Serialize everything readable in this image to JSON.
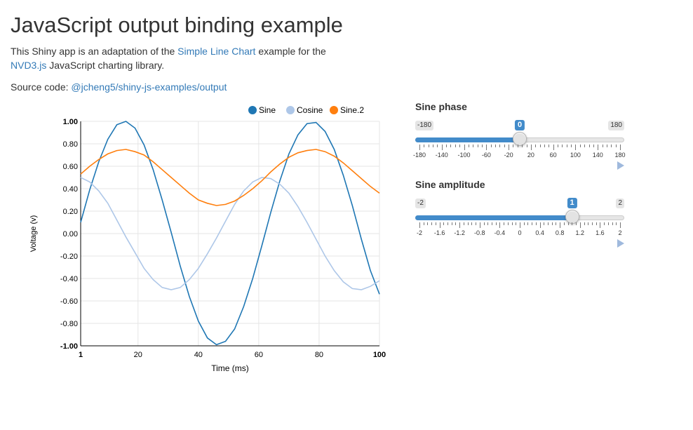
{
  "page": {
    "title": "JavaScript output binding example",
    "desc_prefix": "This Shiny app is an adaptation of the ",
    "desc_link1": "Simple Line Chart",
    "desc_middle": " example for the ",
    "desc_link2": "NVD3.js",
    "desc_suffix": " JavaScript charting library.",
    "source_prefix": "Source code: ",
    "source_link": "@jcheng5/shiny-js-examples/output"
  },
  "controls": {
    "phase": {
      "label": "Sine phase",
      "min": -180,
      "max": 180,
      "value": 0,
      "min_label": "-180",
      "max_label": "180",
      "value_label": "0",
      "tick_labels": [
        "-180",
        "-140",
        "-100",
        "-60",
        "-20",
        "20",
        "60",
        "100",
        "140",
        "180"
      ],
      "play_icon": "play-icon"
    },
    "amplitude": {
      "label": "Sine amplitude",
      "min": -2,
      "max": 2,
      "value": 1,
      "min_label": "-2",
      "max_label": "2",
      "value_label": "1",
      "tick_labels": [
        "-2",
        "-1.6",
        "-1.2",
        "-0.8",
        "-0.4",
        "0",
        "0.4",
        "0.8",
        "1.2",
        "1.6",
        "2"
      ],
      "play_icon": "play-icon"
    },
    "accent": "#428bca"
  },
  "chart_data": {
    "type": "line",
    "xlabel": "Time (ms)",
    "ylabel": "Voltage (v)",
    "xlim": [
      1,
      100
    ],
    "ylim": [
      -1,
      1
    ],
    "x_ticks": [
      "1",
      "20",
      "40",
      "60",
      "80",
      "100"
    ],
    "y_ticks": [
      "1.00",
      "0.80",
      "0.60",
      "0.40",
      "0.20",
      "0.00",
      "-0.20",
      "-0.40",
      "-0.60",
      "-0.80",
      "-1.00"
    ],
    "legend_position": "top-right",
    "grid": true,
    "x": [
      1,
      4,
      7,
      10,
      13,
      16,
      19,
      22,
      25,
      28,
      31,
      34,
      37,
      40,
      43,
      46,
      49,
      52,
      55,
      58,
      61,
      64,
      67,
      70,
      73,
      76,
      79,
      82,
      85,
      88,
      91,
      94,
      97,
      100
    ],
    "series": [
      {
        "name": "Sine",
        "color": "#1f77b4",
        "values": [
          0.1,
          0.39,
          0.64,
          0.84,
          0.97,
          1.0,
          0.94,
          0.79,
          0.57,
          0.3,
          0.01,
          -0.29,
          -0.56,
          -0.78,
          -0.93,
          -0.99,
          -0.96,
          -0.85,
          -0.65,
          -0.4,
          -0.11,
          0.19,
          0.47,
          0.71,
          0.88,
          0.98,
          0.99,
          0.91,
          0.75,
          0.52,
          0.25,
          -0.05,
          -0.33,
          -0.54
        ]
      },
      {
        "name": "Cosine",
        "color": "#aec7e8",
        "values": [
          0.5,
          0.46,
          0.38,
          0.27,
          0.12,
          -0.03,
          -0.17,
          -0.31,
          -0.41,
          -0.48,
          -0.5,
          -0.48,
          -0.41,
          -0.31,
          -0.18,
          -0.04,
          0.11,
          0.26,
          0.38,
          0.46,
          0.5,
          0.49,
          0.44,
          0.36,
          0.24,
          0.1,
          -0.05,
          -0.2,
          -0.33,
          -0.43,
          -0.49,
          -0.5,
          -0.47,
          -0.42
        ]
      },
      {
        "name": "Sine.2",
        "color": "#ff7f0e",
        "values": [
          0.53,
          0.6,
          0.66,
          0.71,
          0.74,
          0.75,
          0.73,
          0.7,
          0.64,
          0.57,
          0.5,
          0.43,
          0.36,
          0.3,
          0.27,
          0.25,
          0.26,
          0.29,
          0.34,
          0.4,
          0.47,
          0.55,
          0.62,
          0.68,
          0.72,
          0.74,
          0.75,
          0.73,
          0.69,
          0.63,
          0.56,
          0.49,
          0.42,
          0.36
        ]
      }
    ]
  }
}
